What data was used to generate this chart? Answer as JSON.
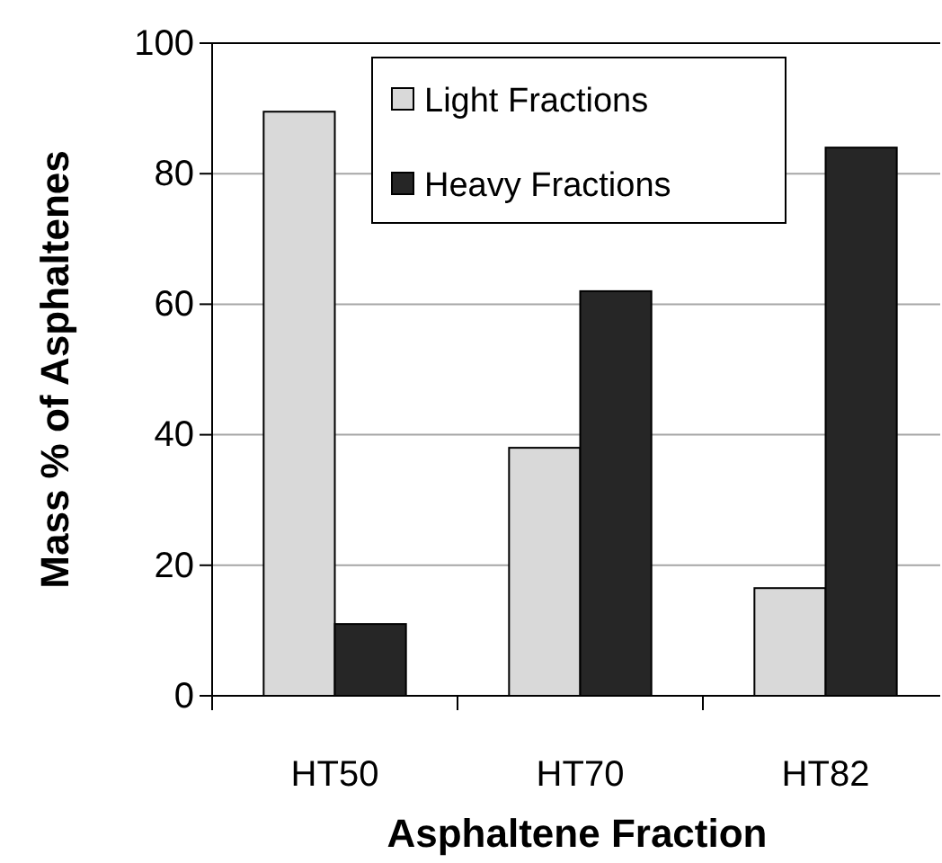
{
  "chart_data": {
    "type": "bar",
    "xlabel": "Asphaltene Fraction",
    "ylabel": "Mass % of Asphaltenes",
    "categories": [
      "HT50",
      "HT70",
      "HT82"
    ],
    "series": [
      {
        "name": "Light Fractions",
        "color": "#d9d9d9",
        "values": [
          89.5,
          38,
          16.5
        ]
      },
      {
        "name": "Heavy Fractions",
        "color": "#262626",
        "values": [
          11,
          62,
          84
        ]
      }
    ],
    "ylim": [
      0,
      100
    ],
    "yticks": [
      0,
      20,
      40,
      60,
      80,
      100
    ],
    "grid": "y",
    "legend": "top"
  }
}
